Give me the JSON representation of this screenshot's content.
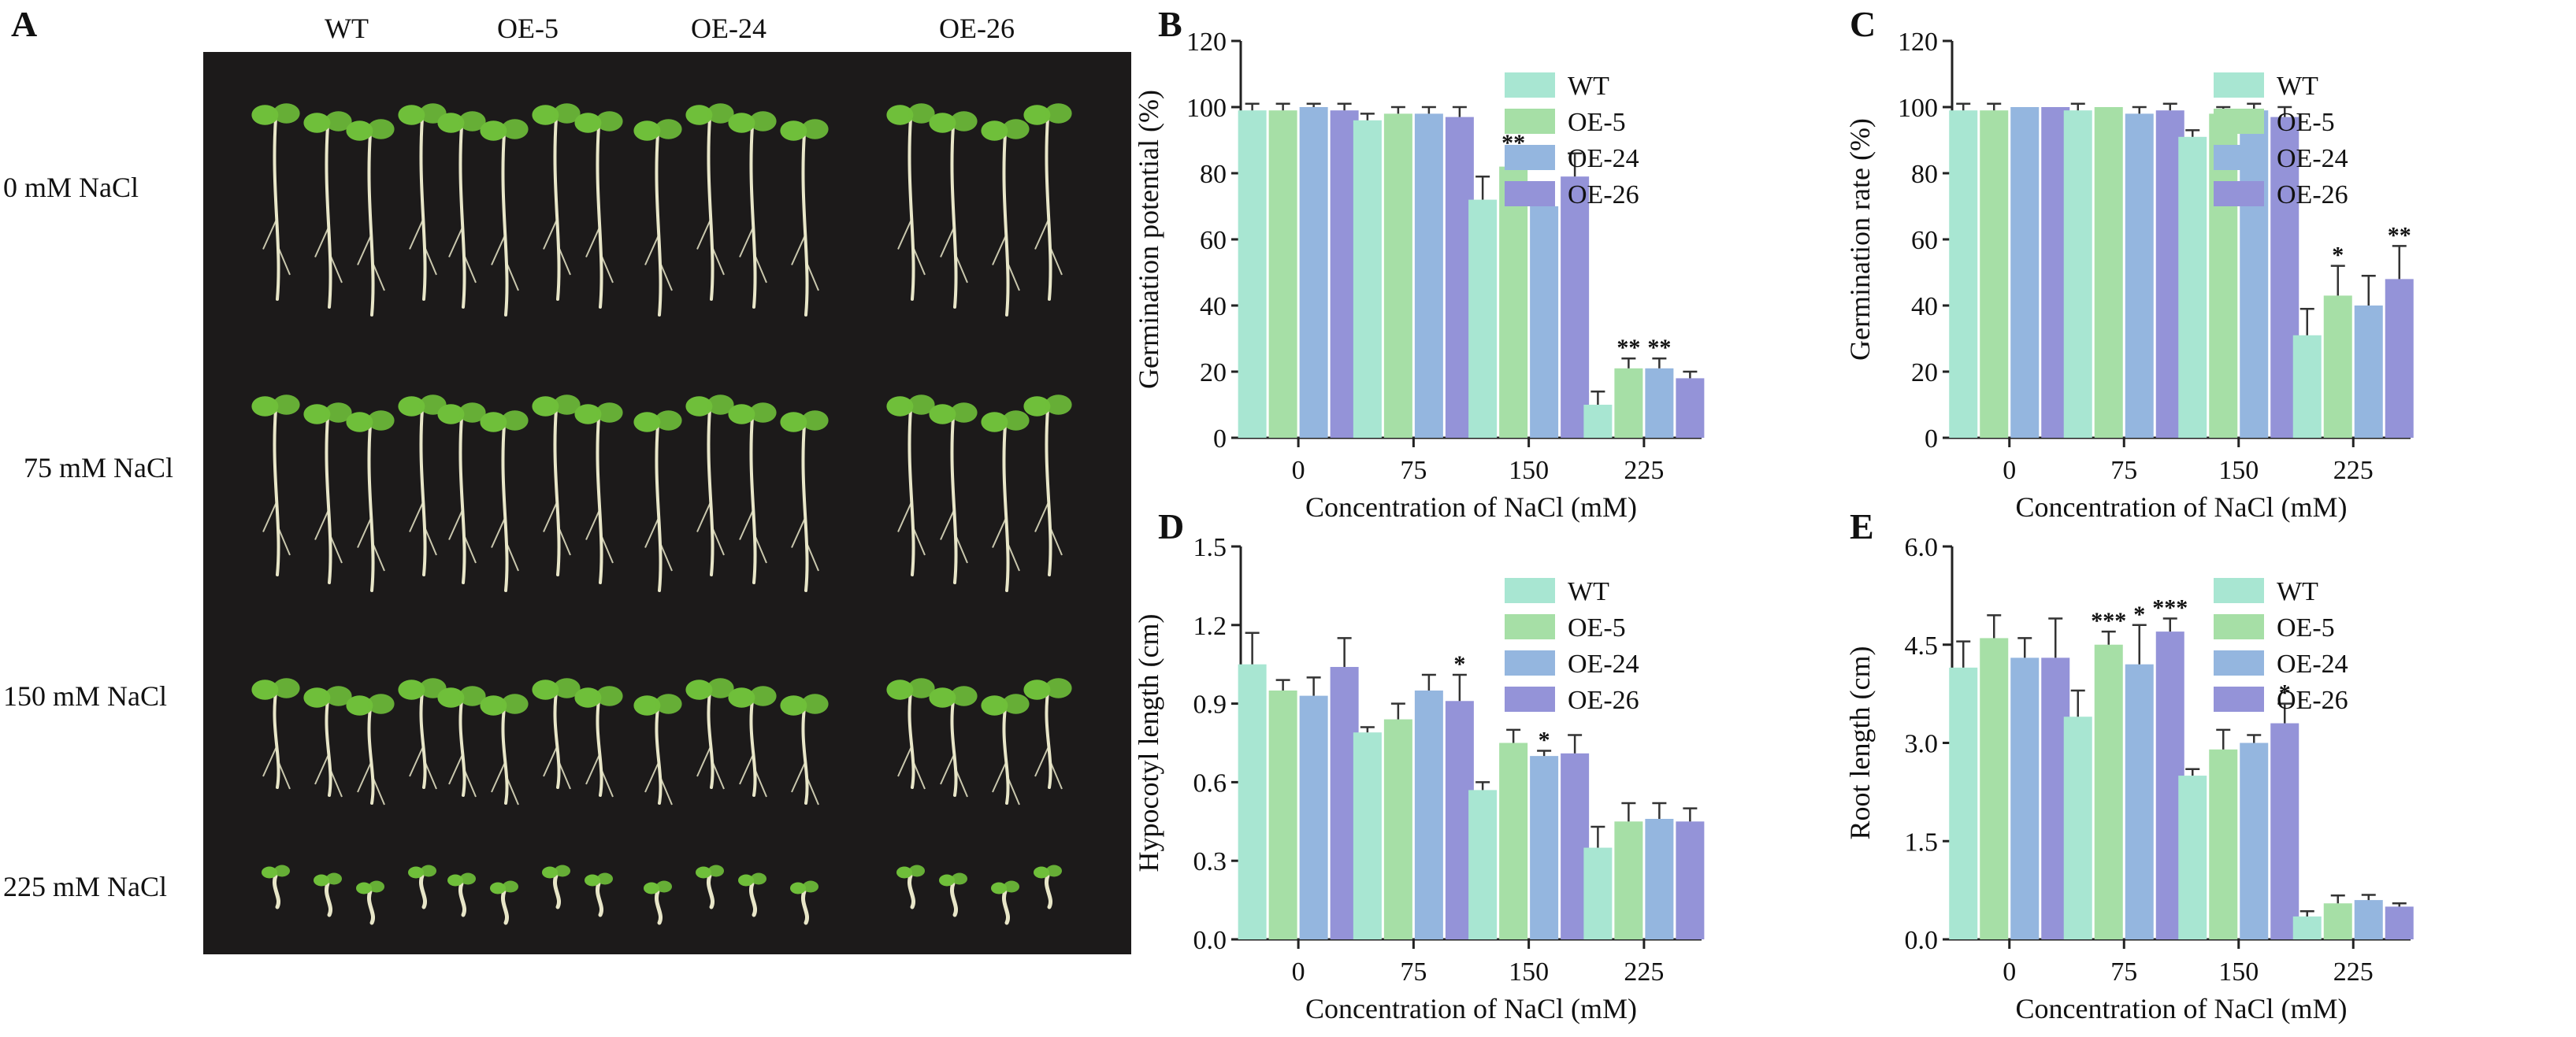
{
  "photo_panel": {
    "letter": "A",
    "strains": [
      "WT",
      "OE-5",
      "OE-24",
      "OE-26"
    ],
    "conditions": [
      "0 mM NaCl",
      "75 mM NaCl",
      "150 mM NaCl",
      "225 mM NaCl"
    ],
    "background_color": "#1c1a1a",
    "seedling_leaf_color": "#6fbf3a",
    "seedling_stem_color": "#e8e6c8"
  },
  "series_colors": {
    "WT": "#a8e6d2",
    "OE-5": "#a6dfa6",
    "OE-24": "#94b6df",
    "OE-26": "#9493d8"
  },
  "chart_data": [
    {
      "panel": "B",
      "type": "bar",
      "title": "",
      "xlabel": "Concentration of NaCl (mM)",
      "ylabel": "Germination potential (%)",
      "categories": [
        "0",
        "75",
        "150",
        "225"
      ],
      "ylim": [
        0,
        120
      ],
      "yticks": [
        0,
        20,
        40,
        60,
        80,
        100,
        120
      ],
      "ytick_labels": [
        "0",
        "20",
        "40",
        "60",
        "80",
        "100",
        "120"
      ],
      "legend": [
        "WT",
        "OE-5",
        "OE-24",
        "OE-26"
      ],
      "legend_position": "right",
      "series": [
        {
          "name": "WT",
          "values": [
            99,
            96,
            72,
            10
          ],
          "errors": [
            2,
            2,
            7,
            4
          ],
          "sig": [
            "",
            "",
            "",
            ""
          ]
        },
        {
          "name": "OE-5",
          "values": [
            99,
            98,
            82,
            21
          ],
          "errors": [
            2,
            2,
            4,
            3
          ],
          "sig": [
            "",
            "",
            "**",
            "**"
          ]
        },
        {
          "name": "OE-24",
          "values": [
            100,
            98,
            70,
            21
          ],
          "errors": [
            1,
            2,
            3,
            3
          ],
          "sig": [
            "",
            "",
            "",
            "**"
          ]
        },
        {
          "name": "OE-26",
          "values": [
            99,
            97,
            79,
            18
          ],
          "errors": [
            2,
            3,
            7,
            2
          ],
          "sig": [
            "",
            "",
            "",
            ""
          ]
        }
      ]
    },
    {
      "panel": "C",
      "type": "bar",
      "title": "",
      "xlabel": "Concentration of NaCl (mM)",
      "ylabel": "Germination rate (%)",
      "categories": [
        "0",
        "75",
        "150",
        "225"
      ],
      "ylim": [
        0,
        120
      ],
      "yticks": [
        0,
        20,
        40,
        60,
        80,
        100,
        120
      ],
      "ytick_labels": [
        "0",
        "20",
        "40",
        "60",
        "80",
        "100",
        "120"
      ],
      "legend": [
        "WT",
        "OE-5",
        "OE-24",
        "OE-26"
      ],
      "legend_position": "right",
      "series": [
        {
          "name": "WT",
          "values": [
            99,
            99,
            91,
            31
          ],
          "errors": [
            2,
            2,
            2,
            8
          ],
          "sig": [
            "",
            "",
            "",
            ""
          ]
        },
        {
          "name": "OE-5",
          "values": [
            99,
            100,
            98,
            43
          ],
          "errors": [
            2,
            0,
            2,
            9
          ],
          "sig": [
            "",
            "",
            "",
            "*"
          ]
        },
        {
          "name": "OE-24",
          "values": [
            100,
            98,
            99,
            40
          ],
          "errors": [
            0,
            2,
            2,
            9
          ],
          "sig": [
            "",
            "",
            "",
            ""
          ]
        },
        {
          "name": "OE-26",
          "values": [
            100,
            99,
            97,
            48
          ],
          "errors": [
            0,
            2,
            3,
            10
          ],
          "sig": [
            "",
            "",
            "",
            "**"
          ]
        }
      ]
    },
    {
      "panel": "D",
      "type": "bar",
      "title": "",
      "xlabel": "Concentration of NaCl (mM)",
      "ylabel": "Hypocotyl length (cm)",
      "categories": [
        "0",
        "75",
        "150",
        "225"
      ],
      "ylim": [
        0,
        1.5
      ],
      "yticks": [
        0,
        0.3,
        0.6,
        0.9,
        1.2,
        1.5
      ],
      "ytick_labels": [
        "0.0",
        "0.3",
        "0.6",
        "0.9",
        "1.2",
        "1.5"
      ],
      "legend": [
        "WT",
        "OE-5",
        "OE-24",
        "OE-26"
      ],
      "legend_position": "right",
      "series": [
        {
          "name": "WT",
          "values": [
            1.05,
            0.79,
            0.57,
            0.35
          ],
          "errors": [
            0.12,
            0.02,
            0.03,
            0.08
          ],
          "sig": [
            "",
            "",
            "",
            ""
          ]
        },
        {
          "name": "OE-5",
          "values": [
            0.95,
            0.84,
            0.75,
            0.45
          ],
          "errors": [
            0.04,
            0.06,
            0.05,
            0.07
          ],
          "sig": [
            "",
            "",
            "",
            ""
          ]
        },
        {
          "name": "OE-24",
          "values": [
            0.93,
            0.95,
            0.7,
            0.46
          ],
          "errors": [
            0.07,
            0.06,
            0.02,
            0.06
          ],
          "sig": [
            "",
            "",
            "*",
            ""
          ]
        },
        {
          "name": "OE-26",
          "values": [
            1.04,
            0.91,
            0.71,
            0.45
          ],
          "errors": [
            0.11,
            0.1,
            0.07,
            0.05
          ],
          "sig": [
            "",
            "*",
            "",
            ""
          ]
        }
      ]
    },
    {
      "panel": "E",
      "type": "bar",
      "title": "",
      "xlabel": "Concentration of NaCl (mM)",
      "ylabel": "Root length (cm)",
      "categories": [
        "0",
        "75",
        "150",
        "225"
      ],
      "ylim": [
        0,
        6.0
      ],
      "yticks": [
        0,
        1.5,
        3.0,
        4.5,
        6.0
      ],
      "ytick_labels": [
        "0.0",
        "1.5",
        "3.0",
        "4.5",
        "6.0"
      ],
      "legend": [
        "WT",
        "OE-5",
        "OE-24",
        "OE-26"
      ],
      "legend_position": "right",
      "series": [
        {
          "name": "WT",
          "values": [
            4.15,
            3.4,
            2.5,
            0.35
          ],
          "errors": [
            0.4,
            0.4,
            0.1,
            0.08
          ],
          "sig": [
            "",
            "",
            "",
            ""
          ]
        },
        {
          "name": "OE-5",
          "values": [
            4.6,
            4.5,
            2.9,
            0.55
          ],
          "errors": [
            0.35,
            0.2,
            0.3,
            0.12
          ],
          "sig": [
            "",
            "***",
            "",
            ""
          ]
        },
        {
          "name": "OE-24",
          "values": [
            4.3,
            4.2,
            3.0,
            0.6
          ],
          "errors": [
            0.3,
            0.6,
            0.12,
            0.08
          ],
          "sig": [
            "",
            "*",
            "",
            ""
          ]
        },
        {
          "name": "OE-26",
          "values": [
            4.3,
            4.7,
            3.3,
            0.5
          ],
          "errors": [
            0.6,
            0.2,
            0.3,
            0.05
          ],
          "sig": [
            "",
            "***",
            "*",
            ""
          ]
        }
      ]
    }
  ]
}
